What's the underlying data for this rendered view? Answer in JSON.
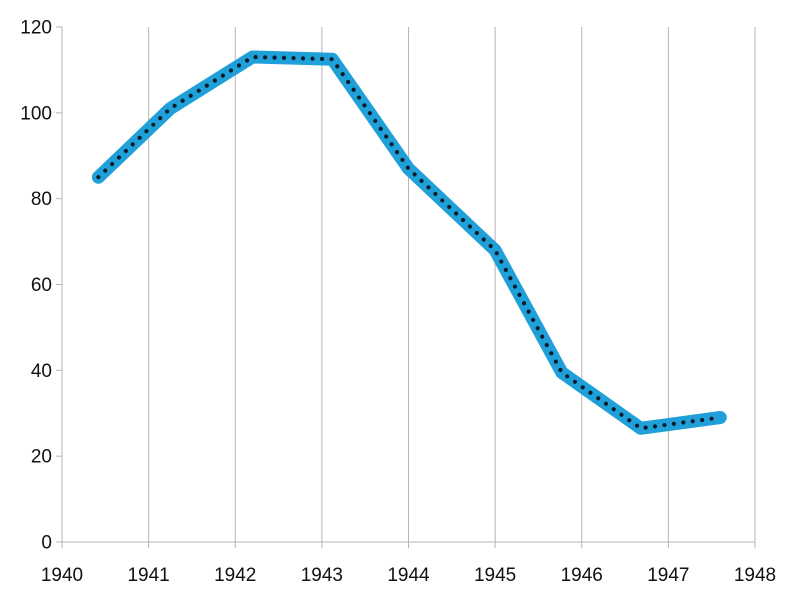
{
  "chart_data": {
    "type": "line",
    "title": "",
    "xlabel": "",
    "ylabel": "",
    "xlim": [
      1940,
      1948
    ],
    "ylim": [
      0,
      120
    ],
    "x_ticks": [
      "1940",
      "1941",
      "1942",
      "1943",
      "1944",
      "1945",
      "1946",
      "1947",
      "1948"
    ],
    "y_ticks": [
      "0",
      "20",
      "40",
      "60",
      "80",
      "100",
      "120"
    ],
    "grid": "vertical",
    "legend": "none",
    "series": [
      {
        "color": "#1fa0d8",
        "dot_color": "#0b1b2a",
        "x": [
          1940.42,
          1941.25,
          1942.2,
          1943.12,
          1944.0,
          1945.0,
          1945.77,
          1946.68,
          1947.6
        ],
        "y": [
          85,
          101,
          113,
          112.5,
          87,
          68,
          39.5,
          26.5,
          29
        ]
      }
    ]
  }
}
